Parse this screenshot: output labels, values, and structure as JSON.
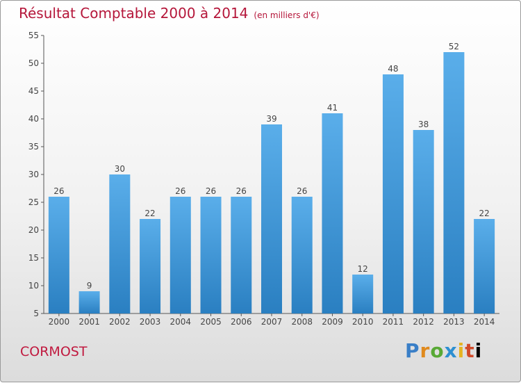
{
  "title": "Résultat Comptable 2000 à 2014",
  "subtitle": "(en milliers d'€)",
  "commune": "CORMOST",
  "logo_text": "Proxiti",
  "colors": {
    "title": "#b5163a",
    "bar_top": "#5aaeea",
    "bar_bottom": "#2a7fc1"
  },
  "chart_data": {
    "type": "bar",
    "title": "Résultat Comptable 2000 à 2014",
    "subtitle": "(en milliers d'€)",
    "xlabel": "",
    "ylabel": "",
    "categories": [
      "2000",
      "2001",
      "2002",
      "2003",
      "2004",
      "2005",
      "2006",
      "2007",
      "2008",
      "2009",
      "2010",
      "2011",
      "2012",
      "2013",
      "2014"
    ],
    "values": [
      26,
      9,
      30,
      22,
      26,
      26,
      26,
      39,
      26,
      41,
      12,
      48,
      38,
      52,
      22
    ],
    "ylim": [
      5,
      55
    ],
    "yticks": [
      5,
      10,
      15,
      20,
      25,
      30,
      35,
      40,
      45,
      50,
      55
    ],
    "grid": false,
    "data_labels": true
  }
}
